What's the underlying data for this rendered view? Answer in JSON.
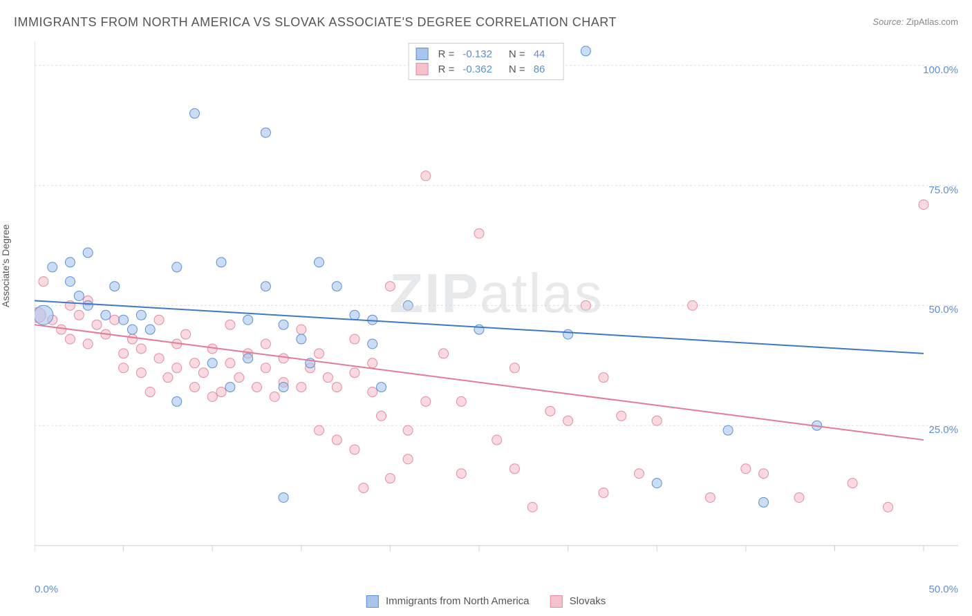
{
  "title": "IMMIGRANTS FROM NORTH AMERICA VS SLOVAK ASSOCIATE'S DEGREE CORRELATION CHART",
  "source_label": "Source:",
  "source_value": "ZipAtlas.com",
  "y_axis_label": "Associate's Degree",
  "watermark": "ZIPatlas",
  "x_tick_min": "0.0%",
  "x_tick_max": "50.0%",
  "y_ticks": [
    "25.0%",
    "50.0%",
    "75.0%",
    "100.0%"
  ],
  "series1": {
    "label": "Immigrants from North America",
    "fill": "#a8c6ec",
    "stroke": "#5b8fd6",
    "line_color": "#3e78c9",
    "R": "-0.132",
    "N": "44"
  },
  "series2": {
    "label": "Slovaks",
    "fill": "#f5c1cd",
    "stroke": "#e68aa0",
    "line_color": "#e67a94",
    "R": "-0.362",
    "N": "86"
  },
  "chart": {
    "type": "scatter",
    "xlim": [
      0,
      50
    ],
    "ylim": [
      0,
      105
    ],
    "grid_color": "#dddddd",
    "axis_color": "#cccccc",
    "background_color": "#ffffff",
    "marker_radius": 7,
    "large_marker_radius": 14,
    "line_width": 2,
    "trend1": {
      "y_start": 51,
      "y_end": 40
    },
    "trend2": {
      "y_start": 46,
      "y_end": 22
    },
    "y_grid_positions": [
      25,
      50,
      75,
      100
    ],
    "x_tick_positions": [
      0,
      5,
      10,
      15,
      20,
      25,
      30,
      35,
      40,
      45,
      50
    ],
    "points_blue": [
      {
        "x": 0.5,
        "y": 48,
        "r": 14
      },
      {
        "x": 1,
        "y": 58
      },
      {
        "x": 2,
        "y": 59
      },
      {
        "x": 2,
        "y": 55
      },
      {
        "x": 2.5,
        "y": 52
      },
      {
        "x": 3,
        "y": 61
      },
      {
        "x": 3,
        "y": 50
      },
      {
        "x": 4,
        "y": 48
      },
      {
        "x": 4.5,
        "y": 54
      },
      {
        "x": 5,
        "y": 47
      },
      {
        "x": 5.5,
        "y": 45
      },
      {
        "x": 6,
        "y": 48
      },
      {
        "x": 6.5,
        "y": 45
      },
      {
        "x": 8,
        "y": 58
      },
      {
        "x": 8,
        "y": 30
      },
      {
        "x": 9,
        "y": 90
      },
      {
        "x": 10,
        "y": 38
      },
      {
        "x": 10.5,
        "y": 59
      },
      {
        "x": 11,
        "y": 33
      },
      {
        "x": 12,
        "y": 39
      },
      {
        "x": 12,
        "y": 47
      },
      {
        "x": 13,
        "y": 86
      },
      {
        "x": 13,
        "y": 54
      },
      {
        "x": 14,
        "y": 46
      },
      {
        "x": 14,
        "y": 33
      },
      {
        "x": 14,
        "y": 10
      },
      {
        "x": 15,
        "y": 43
      },
      {
        "x": 15.5,
        "y": 38
      },
      {
        "x": 16,
        "y": 59
      },
      {
        "x": 17,
        "y": 54
      },
      {
        "x": 18,
        "y": 48
      },
      {
        "x": 19,
        "y": 47
      },
      {
        "x": 19,
        "y": 42
      },
      {
        "x": 19.5,
        "y": 33
      },
      {
        "x": 21,
        "y": 50
      },
      {
        "x": 25,
        "y": 45
      },
      {
        "x": 30,
        "y": 44
      },
      {
        "x": 31,
        "y": 103
      },
      {
        "x": 35,
        "y": 13
      },
      {
        "x": 39,
        "y": 24
      },
      {
        "x": 41,
        "y": 9
      },
      {
        "x": 44,
        "y": 25
      }
    ],
    "points_pink": [
      {
        "x": 0.2,
        "y": 48,
        "r": 11
      },
      {
        "x": 0.5,
        "y": 55
      },
      {
        "x": 1,
        "y": 47
      },
      {
        "x": 1.5,
        "y": 45
      },
      {
        "x": 2,
        "y": 50
      },
      {
        "x": 2,
        "y": 43
      },
      {
        "x": 2.5,
        "y": 48
      },
      {
        "x": 3,
        "y": 51
      },
      {
        "x": 3,
        "y": 42
      },
      {
        "x": 3.5,
        "y": 46
      },
      {
        "x": 4,
        "y": 44
      },
      {
        "x": 4.5,
        "y": 47
      },
      {
        "x": 5,
        "y": 40
      },
      {
        "x": 5,
        "y": 37
      },
      {
        "x": 5.5,
        "y": 43
      },
      {
        "x": 6,
        "y": 41
      },
      {
        "x": 6,
        "y": 36
      },
      {
        "x": 6.5,
        "y": 32
      },
      {
        "x": 7,
        "y": 39
      },
      {
        "x": 7,
        "y": 47
      },
      {
        "x": 7.5,
        "y": 35
      },
      {
        "x": 8,
        "y": 42
      },
      {
        "x": 8,
        "y": 37
      },
      {
        "x": 8.5,
        "y": 44
      },
      {
        "x": 9,
        "y": 38
      },
      {
        "x": 9,
        "y": 33
      },
      {
        "x": 9.5,
        "y": 36
      },
      {
        "x": 10,
        "y": 41
      },
      {
        "x": 10,
        "y": 31
      },
      {
        "x": 10.5,
        "y": 32
      },
      {
        "x": 11,
        "y": 46
      },
      {
        "x": 11,
        "y": 38
      },
      {
        "x": 11.5,
        "y": 35
      },
      {
        "x": 12,
        "y": 40
      },
      {
        "x": 12.5,
        "y": 33
      },
      {
        "x": 13,
        "y": 42
      },
      {
        "x": 13,
        "y": 37
      },
      {
        "x": 13.5,
        "y": 31
      },
      {
        "x": 14,
        "y": 39
      },
      {
        "x": 14,
        "y": 34
      },
      {
        "x": 15,
        "y": 45
      },
      {
        "x": 15,
        "y": 33
      },
      {
        "x": 15.5,
        "y": 37
      },
      {
        "x": 16,
        "y": 40
      },
      {
        "x": 16,
        "y": 24
      },
      {
        "x": 16.5,
        "y": 35
      },
      {
        "x": 17,
        "y": 33
      },
      {
        "x": 17,
        "y": 22
      },
      {
        "x": 18,
        "y": 43
      },
      {
        "x": 18,
        "y": 36
      },
      {
        "x": 18,
        "y": 20
      },
      {
        "x": 18.5,
        "y": 12
      },
      {
        "x": 19,
        "y": 38
      },
      {
        "x": 19,
        "y": 32
      },
      {
        "x": 19.5,
        "y": 27
      },
      {
        "x": 20,
        "y": 14
      },
      {
        "x": 20,
        "y": 54
      },
      {
        "x": 21,
        "y": 24
      },
      {
        "x": 21,
        "y": 18
      },
      {
        "x": 22,
        "y": 77
      },
      {
        "x": 22,
        "y": 30
      },
      {
        "x": 23,
        "y": 40
      },
      {
        "x": 24,
        "y": 30
      },
      {
        "x": 24,
        "y": 15
      },
      {
        "x": 25,
        "y": 65
      },
      {
        "x": 26,
        "y": 22
      },
      {
        "x": 27,
        "y": 37
      },
      {
        "x": 27,
        "y": 16
      },
      {
        "x": 28,
        "y": 8
      },
      {
        "x": 29,
        "y": 28
      },
      {
        "x": 30,
        "y": 26
      },
      {
        "x": 31,
        "y": 50
      },
      {
        "x": 32,
        "y": 35
      },
      {
        "x": 32,
        "y": 11
      },
      {
        "x": 33,
        "y": 27
      },
      {
        "x": 34,
        "y": 15
      },
      {
        "x": 35,
        "y": 26
      },
      {
        "x": 37,
        "y": 50
      },
      {
        "x": 38,
        "y": 10
      },
      {
        "x": 40,
        "y": 16
      },
      {
        "x": 41,
        "y": 15
      },
      {
        "x": 43,
        "y": 10
      },
      {
        "x": 46,
        "y": 13
      },
      {
        "x": 48,
        "y": 8
      },
      {
        "x": 50,
        "y": 71
      }
    ]
  }
}
